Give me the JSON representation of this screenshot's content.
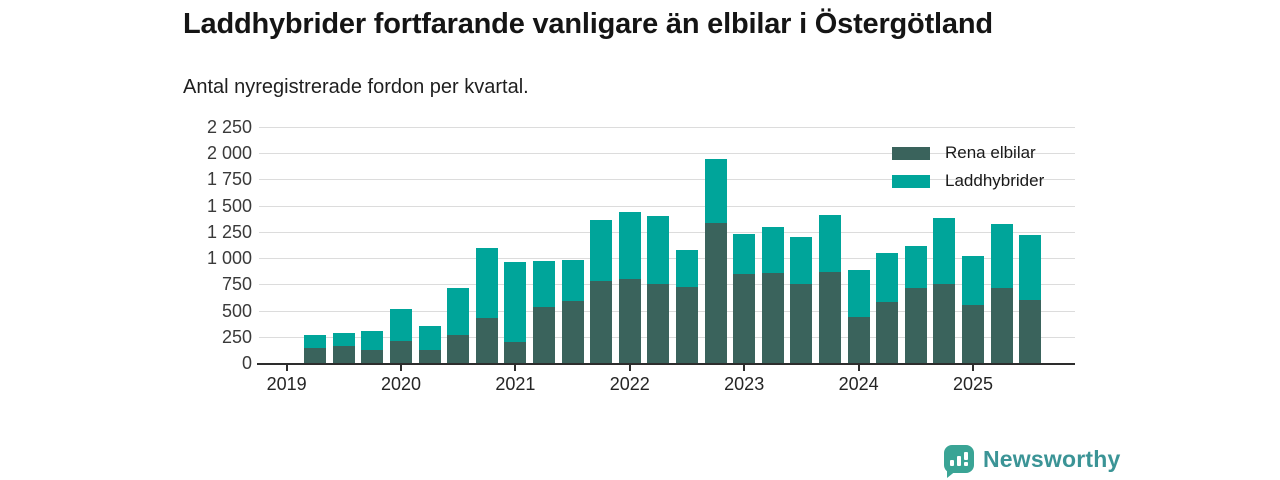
{
  "header": {
    "title": "Laddhybrider fortfarande vanligare än elbilar i Östergötland",
    "subtitle": "Antal nyregistrerade fordon per kvartal."
  },
  "chart_data": {
    "type": "bar",
    "stacked": true,
    "title": "Laddhybrider fortfarande vanligare än elbilar i Östergötland",
    "subtitle": "Antal nyregistrerade fordon per kvartal.",
    "categories": [
      "2019 Q2",
      "2019 Q3",
      "2019 Q4",
      "2020 Q1",
      "2020 Q2",
      "2020 Q3",
      "2020 Q4",
      "2021 Q1",
      "2021 Q2",
      "2021 Q3",
      "2021 Q4",
      "2022 Q1",
      "2022 Q2",
      "2022 Q3",
      "2022 Q4",
      "2023 Q1",
      "2023 Q2",
      "2023 Q3",
      "2023 Q4",
      "2024 Q1",
      "2024 Q2",
      "2024 Q3",
      "2024 Q4",
      "2025 Q1",
      "2025 Q2",
      "2025 Q3"
    ],
    "series": [
      {
        "name": "Rena elbilar",
        "color": "#3a635c",
        "values": [
          140,
          165,
          125,
          210,
          125,
          270,
          430,
          200,
          530,
          595,
          785,
          805,
          755,
          725,
          1335,
          850,
          855,
          755,
          865,
          440,
          585,
          715,
          755,
          550,
          715,
          605
        ]
      },
      {
        "name": "Laddhybrider",
        "color": "#00a59a",
        "values": [
          130,
          120,
          185,
          310,
          230,
          445,
          670,
          760,
          440,
          390,
          580,
          635,
          650,
          350,
          615,
          380,
          445,
          445,
          550,
          445,
          465,
          405,
          630,
          470,
          615,
          620
        ]
      }
    ],
    "y_ticks": [
      0,
      250,
      500,
      750,
      1000,
      1250,
      1500,
      1750,
      2000,
      2250
    ],
    "y_tick_labels": [
      "0",
      "250",
      "500",
      "750",
      "1 000",
      "1 250",
      "1 500",
      "1 750",
      "2 000",
      "2 250"
    ],
    "x_tick_labels": [
      "2019",
      "2020",
      "2021",
      "2022",
      "2023",
      "2024",
      "2025"
    ],
    "ylim": [
      0,
      2250
    ],
    "grid": true,
    "legend_position": "top-right"
  },
  "footer": {
    "brand": "Newsworthy"
  },
  "colors": {
    "elbilar": "#3a635c",
    "laddhybrider": "#00a59a",
    "grid": "#dcdcdc",
    "axis": "#2d2d2d",
    "brand_text": "#3b9496",
    "brand_icon": "#3aa495"
  }
}
